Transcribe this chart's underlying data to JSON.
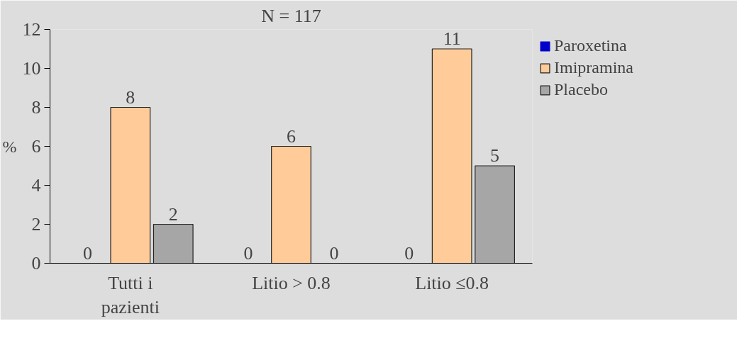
{
  "chart_data": {
    "type": "bar",
    "title": "N = 117",
    "ylabel": "%",
    "categories": [
      "Tutti i\npazienti",
      "Litio > 0.8",
      "Litio ≤0.8"
    ],
    "series": [
      {
        "name": "Paroxetina",
        "color": "#0000cc",
        "values": [
          0,
          0,
          0
        ]
      },
      {
        "name": "Imipramina",
        "color": "#ffcc99",
        "values": [
          8,
          6,
          11
        ]
      },
      {
        "name": "Placebo",
        "color": "#a6a6a6",
        "values": [
          2,
          0,
          5
        ]
      }
    ],
    "ylim": [
      0,
      12
    ],
    "yticks": [
      0,
      2,
      4,
      6,
      8,
      10,
      12
    ],
    "grid": false,
    "legend": "right",
    "data_labels": true
  }
}
